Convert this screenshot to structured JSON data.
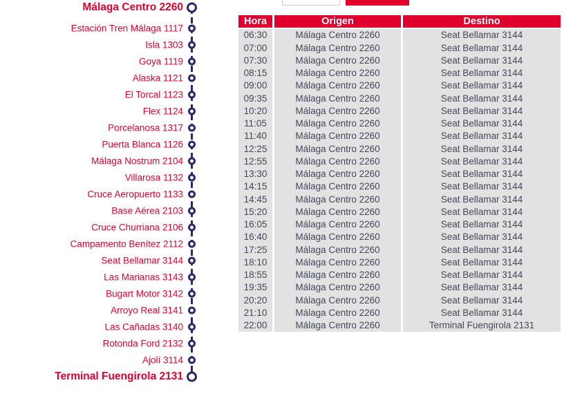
{
  "theme": {
    "accent_red": "#e1002d",
    "line_navy": "#2b2769",
    "row_background": "#e2e2e2",
    "row_text": "#45465a"
  },
  "route": {
    "stops": [
      {
        "label": "Málaga Centro 2260",
        "terminus": true
      },
      {
        "label": "Estación Tren Málaga 1117",
        "terminus": false
      },
      {
        "label": "Isla 1303",
        "terminus": false
      },
      {
        "label": "Goya 1119",
        "terminus": false
      },
      {
        "label": "Alaska 1121",
        "terminus": false
      },
      {
        "label": "El Torcal 1123",
        "terminus": false
      },
      {
        "label": "Flex 1124",
        "terminus": false
      },
      {
        "label": "Porcelanosa 1317",
        "terminus": false
      },
      {
        "label": "Puerta Blanca 1126",
        "terminus": false
      },
      {
        "label": "Málaga Nostrum 2104",
        "terminus": false
      },
      {
        "label": "Villarosa 1132",
        "terminus": false
      },
      {
        "label": "Cruce Aeropuerto 1133",
        "terminus": false
      },
      {
        "label": "Base Aérea 2103",
        "terminus": false
      },
      {
        "label": "Cruce Churriana 2106",
        "terminus": false
      },
      {
        "label": "Campamento Benítez 2112",
        "terminus": false
      },
      {
        "label": "Seat Bellamar 3144",
        "terminus": false
      },
      {
        "label": "Las Marianas 3143",
        "terminus": false
      },
      {
        "label": "Bugart Motor 3142",
        "terminus": false
      },
      {
        "label": "Arroyo Real 3141",
        "terminus": false
      },
      {
        "label": "Las Cañadas 3140",
        "terminus": false
      },
      {
        "label": "Rotonda Ford 2132",
        "terminus": false
      },
      {
        "label": "Ajolí 3114",
        "terminus": false
      },
      {
        "label": "Terminal Fuengirola 2131",
        "terminus": true
      }
    ]
  },
  "schedule": {
    "columns": [
      "Hora",
      "Origen",
      "Destino"
    ],
    "rows": [
      {
        "hora": "06:30",
        "origen": "Málaga Centro 2260",
        "destino": "Seat Bellamar 3144"
      },
      {
        "hora": "07:00",
        "origen": "Málaga Centro 2260",
        "destino": "Seat Bellamar 3144"
      },
      {
        "hora": "07:30",
        "origen": "Málaga Centro 2260",
        "destino": "Seat Bellamar 3144"
      },
      {
        "hora": "08:15",
        "origen": "Málaga Centro 2260",
        "destino": "Seat Bellamar 3144"
      },
      {
        "hora": "09:00",
        "origen": "Málaga Centro 2260",
        "destino": "Seat Bellamar 3144"
      },
      {
        "hora": "09:35",
        "origen": "Málaga Centro 2260",
        "destino": "Seat Bellamar 3144"
      },
      {
        "hora": "10:20",
        "origen": "Málaga Centro 2260",
        "destino": "Seat Bellamar 3144"
      },
      {
        "hora": "11:05",
        "origen": "Málaga Centro 2260",
        "destino": "Seat Bellamar 3144"
      },
      {
        "hora": "11:40",
        "origen": "Málaga Centro 2260",
        "destino": "Seat Bellamar 3144"
      },
      {
        "hora": "12:25",
        "origen": "Málaga Centro 2260",
        "destino": "Seat Bellamar 3144"
      },
      {
        "hora": "12:55",
        "origen": "Málaga Centro 2260",
        "destino": "Seat Bellamar 3144"
      },
      {
        "hora": "13:30",
        "origen": "Málaga Centro 2260",
        "destino": "Seat Bellamar 3144"
      },
      {
        "hora": "14:15",
        "origen": "Málaga Centro 2260",
        "destino": "Seat Bellamar 3144"
      },
      {
        "hora": "14:45",
        "origen": "Málaga Centro 2260",
        "destino": "Seat Bellamar 3144"
      },
      {
        "hora": "15:20",
        "origen": "Málaga Centro 2260",
        "destino": "Seat Bellamar 3144"
      },
      {
        "hora": "16:05",
        "origen": "Málaga Centro 2260",
        "destino": "Seat Bellamar 3144"
      },
      {
        "hora": "16:40",
        "origen": "Málaga Centro 2260",
        "destino": "Seat Bellamar 3144"
      },
      {
        "hora": "17:25",
        "origen": "Málaga Centro 2260",
        "destino": "Seat Bellamar 3144"
      },
      {
        "hora": "18:10",
        "origen": "Málaga Centro 2260",
        "destino": "Seat Bellamar 3144"
      },
      {
        "hora": "18:55",
        "origen": "Málaga Centro 2260",
        "destino": "Seat Bellamar 3144"
      },
      {
        "hora": "19:35",
        "origen": "Málaga Centro 2260",
        "destino": "Seat Bellamar 3144"
      },
      {
        "hora": "20:20",
        "origen": "Málaga Centro 2260",
        "destino": "Seat Bellamar 3144"
      },
      {
        "hora": "21:10",
        "origen": "Málaga Centro 2260",
        "destino": "Seat Bellamar 3144"
      },
      {
        "hora": "22:00",
        "origen": "Málaga Centro 2260",
        "destino": "Terminal Fuengirola 2131"
      }
    ]
  }
}
